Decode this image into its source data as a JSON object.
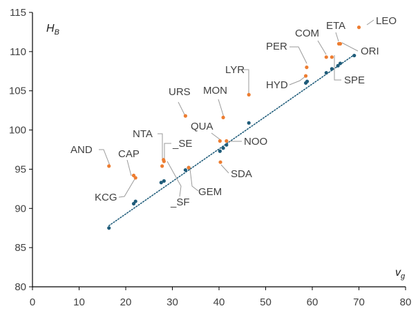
{
  "chart_data": {
    "type": "scatter",
    "title": "",
    "xlabel": "v",
    "xlabel_sub": "g",
    "ylabel": "H",
    "ylabel_sub": "B",
    "xlim": [
      0,
      80
    ],
    "ylim": [
      80,
      115
    ],
    "xticks": [
      "0",
      "10",
      "20",
      "30",
      "40",
      "50",
      "60",
      "70",
      "80"
    ],
    "yticks": [
      "80",
      "85",
      "90",
      "95",
      "100",
      "105",
      "110",
      "115"
    ],
    "grid": false,
    "legend": "none",
    "colors": {
      "labeled": "#ED7D31",
      "fit": "#1F5C7A"
    },
    "labeled_points": [
      {
        "label": "LEO",
        "x": 70.0,
        "y": 113.1
      },
      {
        "label": "ETA",
        "x": 65.7,
        "y": 111.0
      },
      {
        "label": "ORI",
        "x": 66.0,
        "y": 111.0
      },
      {
        "label": "COM",
        "x": 63.0,
        "y": 109.3
      },
      {
        "label": "SPE",
        "x": 64.2,
        "y": 109.3
      },
      {
        "label": "PER",
        "x": 58.8,
        "y": 108.0
      },
      {
        "label": "HYD",
        "x": 58.6,
        "y": 106.9
      },
      {
        "label": "LYR",
        "x": 46.4,
        "y": 104.5
      },
      {
        "label": "MON",
        "x": 40.9,
        "y": 101.6
      },
      {
        "label": "URS",
        "x": 32.8,
        "y": 101.8
      },
      {
        "label": "QUA",
        "x": 40.2,
        "y": 98.6
      },
      {
        "label": "NOO",
        "x": 41.6,
        "y": 98.6
      },
      {
        "label": "SDA",
        "x": 40.3,
        "y": 95.9
      },
      {
        "label": "NTA",
        "x": 28.1,
        "y": 96.2
      },
      {
        "label": "_SE",
        "x": 28.2,
        "y": 96.0
      },
      {
        "label": "_SF",
        "x": 27.8,
        "y": 95.4
      },
      {
        "label": "GEM",
        "x": 33.5,
        "y": 95.2
      },
      {
        "label": "AND",
        "x": 16.4,
        "y": 95.4
      },
      {
        "label": "CAP",
        "x": 21.7,
        "y": 94.2
      },
      {
        "label": "KCG",
        "x": 22.1,
        "y": 93.9
      }
    ],
    "fitted_points": [
      {
        "x": 16.4,
        "y": 87.5
      },
      {
        "x": 21.7,
        "y": 90.6
      },
      {
        "x": 22.1,
        "y": 90.9
      },
      {
        "x": 27.6,
        "y": 93.3
      },
      {
        "x": 28.2,
        "y": 93.5
      },
      {
        "x": 32.8,
        "y": 94.9
      },
      {
        "x": 33.5,
        "y": 95.2
      },
      {
        "x": 40.2,
        "y": 97.3
      },
      {
        "x": 40.9,
        "y": 97.7
      },
      {
        "x": 41.6,
        "y": 98.1
      },
      {
        "x": 46.4,
        "y": 100.9
      },
      {
        "x": 58.6,
        "y": 106.0
      },
      {
        "x": 58.9,
        "y": 106.2
      },
      {
        "x": 63.0,
        "y": 107.3
      },
      {
        "x": 64.2,
        "y": 107.8
      },
      {
        "x": 65.5,
        "y": 108.2
      },
      {
        "x": 66.0,
        "y": 108.5
      },
      {
        "x": 69.0,
        "y": 109.5
      }
    ],
    "trendline": {
      "style": "dotted",
      "x": [
        16.4,
        69.0
      ],
      "y": [
        87.8,
        109.6
      ]
    }
  }
}
